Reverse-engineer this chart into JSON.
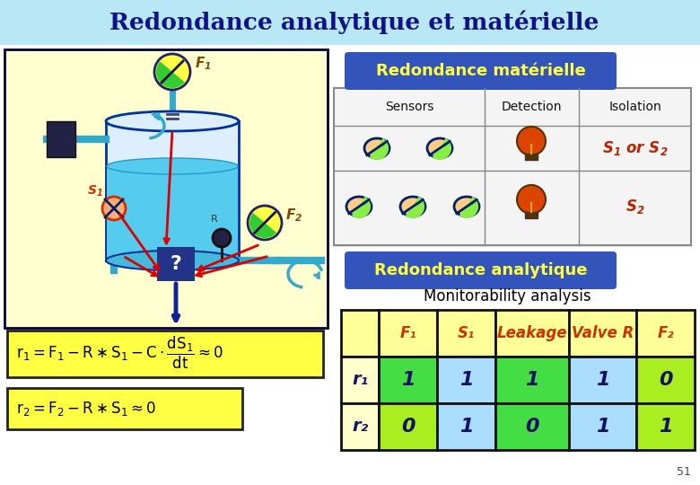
{
  "title": "Redondance analytique et matérielle",
  "title_bg": "#b8e8f5",
  "slide_bg": "#ffffff",
  "box_materielle_label": "Redondance matérielle",
  "box_materielle_bg": "#3355bb",
  "box_analytique_label": "Redondance analytique",
  "box_analytique_bg": "#3355bb",
  "monitorability_label": "Monitorability analysis",
  "table_header_cols": [
    "F₁",
    "S₁",
    "Leakage",
    "Valve R",
    "F₂"
  ],
  "table_row_labels": [
    "r₁",
    "r₂"
  ],
  "table_values": [
    [
      1,
      1,
      1,
      1,
      0
    ],
    [
      0,
      1,
      0,
      1,
      1
    ]
  ],
  "table_cell_colors_r1": [
    "#44dd44",
    "#aaddff",
    "#44dd44",
    "#aaddff",
    "#aaee22"
  ],
  "table_cell_colors_r2": [
    "#aaee22",
    "#aaddff",
    "#44dd44",
    "#aaddff",
    "#aaee22"
  ],
  "sensors_header": "Sensors",
  "detection_header": "Detection",
  "isolation_header": "Isolation",
  "left_bg": "#ffffd0",
  "left_border": "#000033",
  "tank_body": "#ccddff",
  "water_color": "#55ccee",
  "pipe_color": "#33aacc",
  "gauge_yellow": "#ffff44",
  "gauge_green": "#44cc44",
  "pump_color": "#222244",
  "red_arrow": "#dd0000",
  "blue_box": "#223388",
  "formula_bg": "#ffff44",
  "formula_border": "#222222",
  "page_num": "51"
}
